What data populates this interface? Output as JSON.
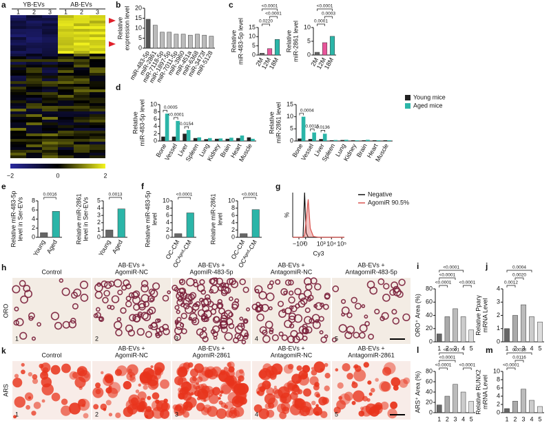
{
  "heatmap": {
    "label": "a",
    "groups": [
      "YB-EVs",
      "AB-EVs"
    ],
    "columns": [
      "1",
      "2",
      "3",
      "1",
      "2",
      "3"
    ],
    "colorbar_ticks": [
      "−2",
      "0",
      "2"
    ]
  },
  "images": {
    "h": {
      "label": "h",
      "stain": "ORO",
      "titles": [
        [
          "Control"
        ],
        [
          "AB-EVs +",
          "AgomiR-NC"
        ],
        [
          "AB-EVs +",
          "AgomiR-483-5p"
        ],
        [
          "AB-EVs +",
          "AntagomiR-NC"
        ],
        [
          "AB-EVs +",
          "AntagomiR-483-5p"
        ]
      ],
      "numbers": [
        "1",
        "2",
        "3",
        "4",
        "5"
      ]
    },
    "k": {
      "label": "k",
      "stain": "ARS",
      "titles": [
        [
          "Control"
        ],
        [
          "AB-EVs +",
          "AgomiR-NC"
        ],
        [
          "AB-EVs +",
          "AgomiR-2861"
        ],
        [
          "AB-EVs +",
          "AntagomiR-NC"
        ],
        [
          "AB-EVs +",
          "AntagomiR-2861"
        ]
      ],
      "numbers": [
        "1",
        "2",
        "3",
        "4",
        "5"
      ]
    }
  },
  "chart_data": [
    {
      "type": "bar",
      "label": "b",
      "ylabel": [
        "Relative",
        "expression level"
      ],
      "categories": [
        "miR-483-5p",
        "miR-2861",
        "miR-7118-5p",
        "miR-1897-5p",
        "miR-7011-5p",
        "miR-3960",
        "miR-451a",
        "miR-6368",
        "miR-3473f",
        "miR-5128"
      ],
      "values": [
        14.5,
        11.5,
        8,
        8,
        7,
        7,
        6.5,
        7,
        6.5,
        6
      ],
      "colors": [
        "#555555",
        "#bbbbbb",
        "#bbbbbb",
        "#bbbbbb",
        "#bbbbbb",
        "#bbbbbb",
        "#bbbbbb",
        "#bbbbbb",
        "#bbbbbb",
        "#bbbbbb"
      ],
      "ylim": [
        0,
        20
      ],
      "yticks": [
        0,
        5,
        10,
        15,
        20
      ]
    },
    {
      "type": "bar",
      "label": "c",
      "ylabel": [
        "Relative",
        "miR-483-5p level"
      ],
      "categories": [
        "2M",
        "12M",
        "18M"
      ],
      "values": [
        1,
        3.5,
        8.5
      ],
      "colors": [
        "#666666",
        "#e8559a",
        "#2bb5a8"
      ],
      "ylim": [
        0,
        15
      ],
      "yticks": [
        0,
        5,
        10,
        15
      ],
      "annotations": [
        "<0.0001",
        "<0.0001",
        "0.0220"
      ]
    },
    {
      "type": "bar",
      "ylabel": [
        "Relative",
        "miR-2861 level"
      ],
      "categories": [
        "2M",
        "12M",
        "18M"
      ],
      "values": [
        1,
        4.5,
        6.8
      ],
      "colors": [
        "#666666",
        "#e8559a",
        "#2bb5a8"
      ],
      "ylim": [
        0,
        10
      ],
      "yticks": [
        0,
        5,
        10
      ],
      "annotations": [
        "<0.0001",
        "0.0003",
        "0.0001"
      ]
    },
    {
      "type": "bar",
      "label": "d",
      "ylabel": [
        "Relative",
        "miR-483-5p level"
      ],
      "categories": [
        "Bone",
        "Vessel",
        "Liver",
        "Spleen",
        "Lung",
        "Kidney",
        "Brain",
        "Heart",
        "Muscle"
      ],
      "series": [
        {
          "name": "Young mice",
          "color": "#222222",
          "values": [
            1.2,
            1.2,
            2,
            0.8,
            0.5,
            0.6,
            0.6,
            0.8,
            1
          ]
        },
        {
          "name": "Aged mice",
          "color": "#2bb5a8",
          "values": [
            7.5,
            5.5,
            3,
            1,
            0.8,
            0.7,
            0.9,
            1.5,
            0.6
          ]
        }
      ],
      "ylim": [
        0,
        10
      ],
      "yticks": [
        0,
        2,
        4,
        6,
        8,
        10
      ],
      "annotations": [
        "0.0005",
        "<0.0001",
        "0.0154"
      ]
    },
    {
      "type": "bar",
      "ylabel": [
        "Relative",
        "miR-2861 level"
      ],
      "categories": [
        "Bone",
        "Vessel",
        "Liver",
        "Spleen",
        "Lung",
        "Kidney",
        "Brain",
        "Heart",
        "Muscle"
      ],
      "series": [
        {
          "color": "#222222",
          "values": [
            1,
            0.8,
            0.8,
            0.3,
            0.4,
            0.3,
            0.3,
            0.3,
            0.3
          ]
        },
        {
          "color": "#2bb5a8",
          "values": [
            10,
            3.5,
            3,
            0.4,
            0.5,
            0.3,
            0.5,
            0.3,
            0.3
          ]
        }
      ],
      "ylim": [
        0,
        15
      ],
      "yticks": [
        0,
        5,
        10,
        15
      ],
      "annotations": [
        "0.0004",
        "0.0015",
        "0.0136"
      ]
    },
    {
      "type": "bar",
      "label": "e",
      "ylabel": [
        "Relative miR-483-5p",
        "level in Ser-EVs"
      ],
      "categories": [
        "Young",
        "Aged"
      ],
      "values": [
        1,
        5.7
      ],
      "colors": [
        "#666666",
        "#2bb5a8"
      ],
      "ylim": [
        0,
        8
      ],
      "yticks": [
        0,
        2,
        4,
        6,
        8
      ],
      "annotations": [
        "0.0016"
      ]
    },
    {
      "type": "bar",
      "ylabel": [
        "Relative miR-2861",
        "level in Ser-EVs"
      ],
      "categories": [
        "Young",
        "Aged"
      ],
      "values": [
        1,
        3.9
      ],
      "colors": [
        "#666666",
        "#2bb5a8"
      ],
      "ylim": [
        0,
        5
      ],
      "yticks": [
        0,
        1,
        2,
        3,
        4,
        5
      ],
      "annotations": [
        "0.0013"
      ]
    },
    {
      "type": "bar",
      "label": "f",
      "ylabel": [
        "Relative miR-483-5p",
        "level"
      ],
      "categories": [
        "OC-CM",
        "OCᴬᵍᵉᵈ-CM"
      ],
      "values": [
        1,
        6.7
      ],
      "colors": [
        "#666666",
        "#2bb5a8"
      ],
      "ylim": [
        0,
        10
      ],
      "yticks": [
        0,
        2,
        4,
        6,
        8,
        10
      ],
      "annotations": [
        "<0.0001"
      ]
    },
    {
      "type": "bar",
      "ylabel": [
        "Relative miR-2861",
        "level"
      ],
      "categories": [
        "OC-CM",
        "OCᴬᵍᵉᵈ-CM"
      ],
      "values": [
        1,
        7.6
      ],
      "colors": [
        "#666666",
        "#2bb5a8"
      ],
      "ylim": [
        0,
        10
      ],
      "yticks": [
        0,
        2,
        4,
        6,
        8,
        10
      ],
      "annotations": [
        "<0.0001"
      ]
    },
    {
      "type": "line",
      "label": "g",
      "ylabel": [
        "%"
      ],
      "xlabel": "Cy3",
      "x": [
        0,
        1,
        2,
        2.3,
        2.6,
        3,
        3.4,
        4,
        5,
        10
      ],
      "series": [
        {
          "name": "Negative",
          "color": "#111111",
          "values": [
            0,
            0,
            0,
            100,
            10,
            0,
            0,
            0,
            0,
            0
          ]
        },
        {
          "name": "AgomiR 90.5%",
          "color": "#d9534f",
          "values": [
            0,
            0,
            0,
            5,
            40,
            85,
            20,
            2,
            0,
            0
          ]
        }
      ],
      "xlim": [
        0,
        10
      ],
      "ylim": [
        0,
        100
      ],
      "xticks": [
        {
          "value": 1.2,
          "label": "−10³"
        },
        {
          "value": 2.5,
          "label": "0"
        },
        {
          "value": 5.5,
          "label": "10³"
        },
        {
          "value": 7.5,
          "label": "10⁴"
        },
        {
          "value": 9.5,
          "label": "10⁵"
        }
      ]
    },
    {
      "type": "bar",
      "label": "i",
      "ylabel": [
        "ORO⁺ Area (%)"
      ],
      "categories": [
        "1",
        "2",
        "3",
        "4",
        "5"
      ],
      "values": [
        12,
        38,
        50,
        38,
        18
      ],
      "colors": [
        "#666666",
        "#aaaaaa",
        "#bbbbbb",
        "#cccccc",
        "#dddddd"
      ],
      "ylim": [
        0,
        80
      ],
      "yticks": [
        0,
        20,
        40,
        60,
        80
      ],
      "annotations": [
        "<0.0001",
        "<0.0001",
        "<0.0001",
        "<0.0001"
      ]
    },
    {
      "type": "bar",
      "label": "j",
      "ylabel": [
        "Relative Pparγ",
        "mRNA Level"
      ],
      "categories": [
        "1",
        "2",
        "3",
        "4",
        "5"
      ],
      "values": [
        1,
        2,
        2.8,
        1.9,
        1.5
      ],
      "colors": [
        "#666666",
        "#aaaaaa",
        "#bbbbbb",
        "#cccccc",
        "#dddddd"
      ],
      "ylim": [
        0,
        4
      ],
      "yticks": [
        0,
        1,
        2,
        3,
        4
      ],
      "annotations": [
        "0.0004",
        "0.0012",
        "0.0020"
      ]
    },
    {
      "type": "bar",
      "label": "l",
      "ylabel": [
        "ARS⁺ Area (%)"
      ],
      "categories": [
        "1",
        "2",
        "3",
        "4",
        "5"
      ],
      "values": [
        15,
        32,
        55,
        40,
        22
      ],
      "colors": [
        "#666666",
        "#aaaaaa",
        "#bbbbbb",
        "#cccccc",
        "#dddddd"
      ],
      "ylim": [
        0,
        80
      ],
      "yticks": [
        0,
        20,
        40,
        60,
        80
      ],
      "annotations": [
        "<0.0001",
        "<0.0001",
        "<0.0001",
        "<0.0001"
      ]
    },
    {
      "type": "bar",
      "label": "m",
      "ylabel": [
        "Relative RUNX2",
        "mRNA Level"
      ],
      "categories": [
        "1",
        "2",
        "3",
        "4",
        "5"
      ],
      "values": [
        1,
        2.8,
        5.7,
        3,
        1.5
      ],
      "colors": [
        "#666666",
        "#aaaaaa",
        "#bbbbbb",
        "#cccccc",
        "#dddddd"
      ],
      "ylim": [
        0,
        10
      ],
      "yticks": [
        0,
        2,
        4,
        6,
        8,
        10
      ],
      "annotations": [
        "0.0028",
        "<0.0001",
        "0.0116"
      ]
    }
  ]
}
